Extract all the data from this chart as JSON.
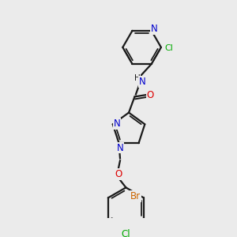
{
  "bg_color": "#ebebeb",
  "atoms": {
    "colors": {
      "C": "#1a1a1a",
      "N": "#0000cc",
      "O": "#dd0000",
      "Cl": "#00aa00",
      "Br": "#cc6600",
      "H": "#1a1a1a"
    }
  },
  "bond_color": "#1a1a1a",
  "bond_width": 1.6,
  "label_fontsize": 8.0
}
